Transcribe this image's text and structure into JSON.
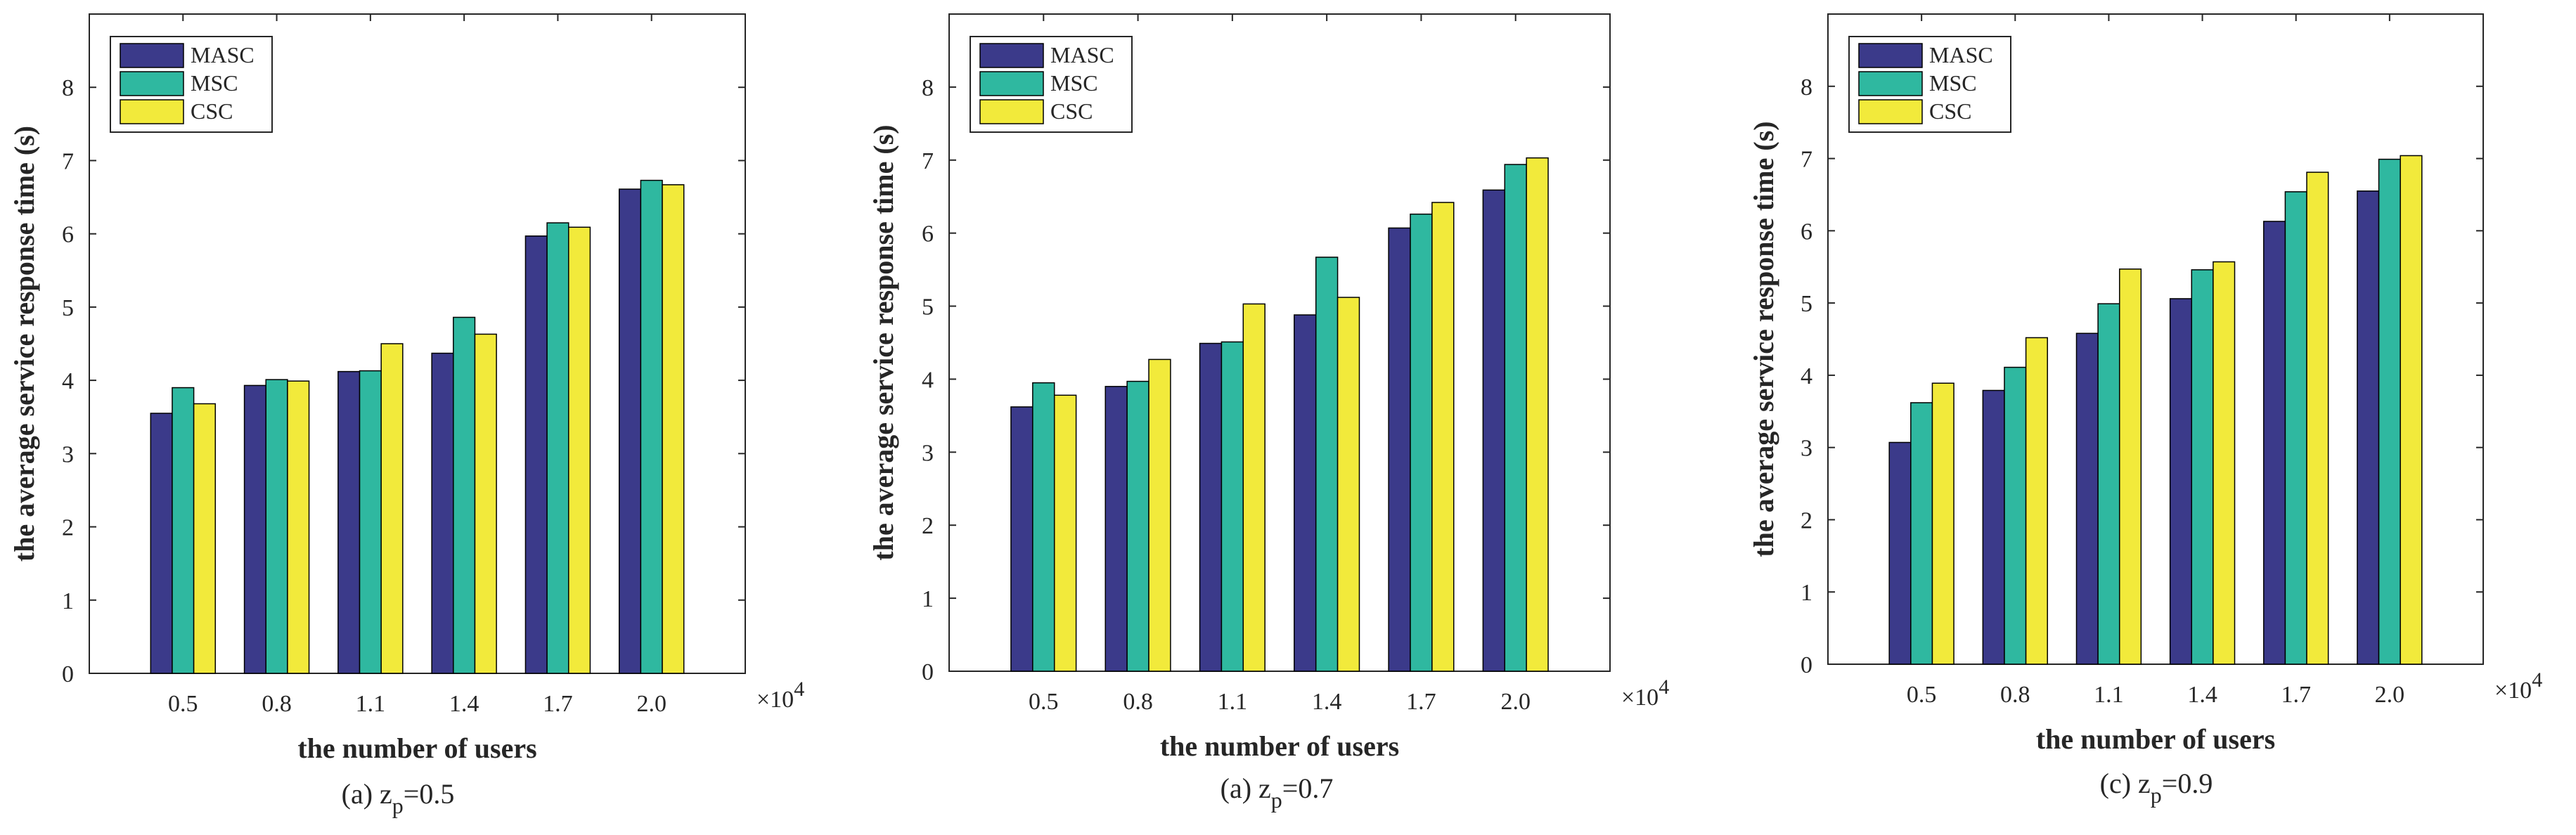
{
  "chart_data": [
    {
      "type": "bar",
      "caption": {
        "prefix": "(a)",
        "var": "z",
        "sub": "p",
        "value": "=0.5"
      },
      "categories": [
        "0.5",
        "0.8",
        "1.1",
        "1.4",
        "1.7",
        "2.0"
      ],
      "series": [
        {
          "name": "MASC",
          "values": [
            3.55,
            3.93,
            4.12,
            4.37,
            5.97,
            6.61
          ]
        },
        {
          "name": "MSC",
          "values": [
            3.9,
            4.01,
            4.13,
            4.86,
            6.15,
            6.73
          ]
        },
        {
          "name": "CSC",
          "values": [
            3.68,
            3.99,
            4.5,
            4.63,
            6.09,
            6.67
          ]
        }
      ],
      "xlabel": "the number of users",
      "ylabel": "the average service response time (s)",
      "x_multiplier": {
        "base": "×10",
        "exp": "4"
      },
      "ylim": [
        0,
        9
      ],
      "yticks": [
        "0",
        "1",
        "2",
        "3",
        "4",
        "5",
        "6",
        "7",
        "8"
      ],
      "legend_position": "top-left",
      "grid": false
    },
    {
      "type": "bar",
      "caption": {
        "prefix": "(a)",
        "var": "z",
        "sub": "p",
        "value": "=0.7"
      },
      "categories": [
        "0.5",
        "0.8",
        "1.1",
        "1.4",
        "1.7",
        "2.0"
      ],
      "series": [
        {
          "name": "MASC",
          "values": [
            3.62,
            3.9,
            4.49,
            4.88,
            6.07,
            6.59
          ]
        },
        {
          "name": "MSC",
          "values": [
            3.95,
            3.97,
            4.51,
            5.67,
            6.26,
            6.94
          ]
        },
        {
          "name": "CSC",
          "values": [
            3.78,
            4.27,
            5.03,
            5.12,
            6.42,
            7.03
          ]
        }
      ],
      "xlabel": "the number of users",
      "ylabel": "the average service response time (s)",
      "x_multiplier": {
        "base": "×10",
        "exp": "4"
      },
      "ylim": [
        0,
        9
      ],
      "yticks": [
        "0",
        "1",
        "2",
        "3",
        "4",
        "5",
        "6",
        "7",
        "8"
      ],
      "legend_position": "top-left",
      "grid": false
    },
    {
      "type": "bar",
      "caption": {
        "prefix": "(c)",
        "var": "z",
        "sub": "p",
        "value": "=0.9"
      },
      "categories": [
        "0.5",
        "0.8",
        "1.1",
        "1.4",
        "1.7",
        "2.0"
      ],
      "series": [
        {
          "name": "MASC",
          "values": [
            3.07,
            3.79,
            4.58,
            5.06,
            6.13,
            6.55
          ]
        },
        {
          "name": "MSC",
          "values": [
            3.62,
            4.11,
            4.99,
            5.46,
            6.54,
            6.99
          ]
        },
        {
          "name": "CSC",
          "values": [
            3.89,
            4.52,
            5.47,
            5.57,
            6.81,
            7.04
          ]
        }
      ],
      "xlabel": "the number of users",
      "ylabel": "the average service response time (s)",
      "x_multiplier": {
        "base": "×10",
        "exp": "4"
      },
      "ylim": [
        0,
        9
      ],
      "yticks": [
        "0",
        "1",
        "2",
        "3",
        "4",
        "5",
        "6",
        "7",
        "8"
      ],
      "legend_position": "top-left",
      "grid": false
    }
  ],
  "colors": {
    "MASC": "#3b3a8a",
    "MSC": "#2fb8a0",
    "CSC": "#f2ea3b",
    "axis": "#262626"
  }
}
